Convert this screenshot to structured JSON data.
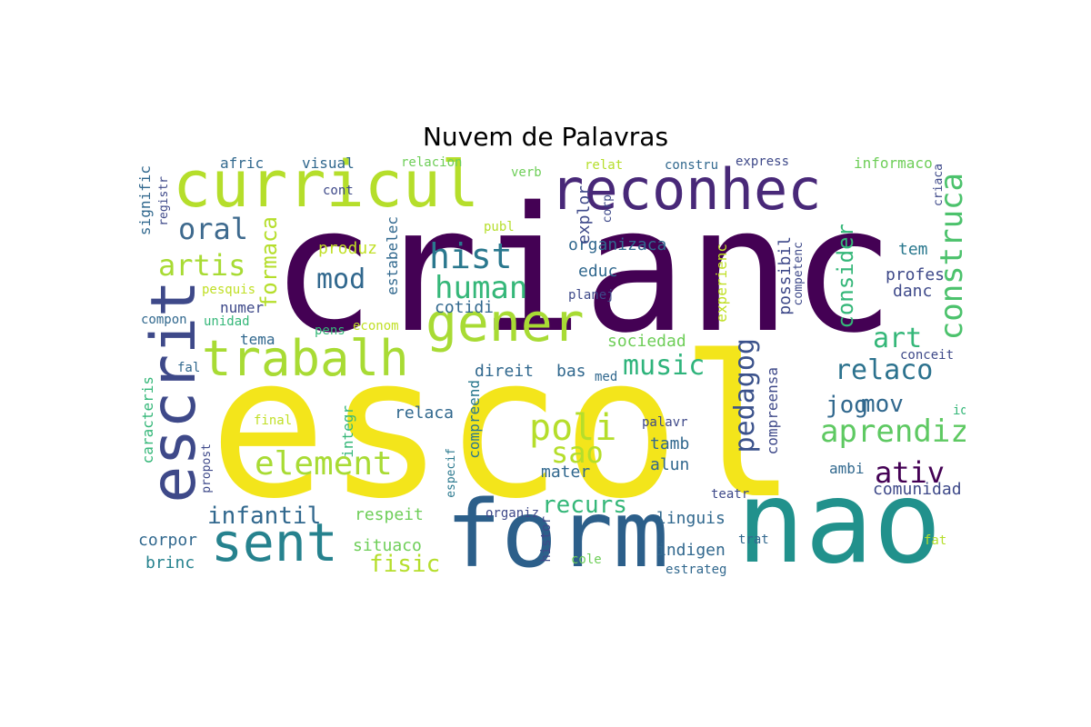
{
  "title": "Nuvem de Palavras",
  "colors": {
    "dark_purple": "#440154",
    "indigo": "#482878",
    "blue": "#3e4989",
    "steel_blue": "#31688e",
    "teal_blue": "#26828e",
    "teal": "#1f9e89",
    "green": "#35b779",
    "light_green": "#6ece58",
    "lime": "#b5de2b",
    "yellow": "#fde725"
  },
  "words": [
    {
      "text": "crianc",
      "color": "#440154"
    },
    {
      "text": "escol",
      "color": "#f3e51b"
    },
    {
      "text": "nao",
      "color": "#21918c"
    },
    {
      "text": "form",
      "color": "#2c5f8a"
    },
    {
      "text": "curricul",
      "color": "#b5de2b"
    },
    {
      "text": "reconhec",
      "color": "#482878"
    },
    {
      "text": "gener",
      "color": "#a8db34"
    },
    {
      "text": "trabalh",
      "color": "#a8db34"
    },
    {
      "text": "escrit",
      "color": "#3e4989"
    },
    {
      "text": "sent",
      "color": "#26828e"
    },
    {
      "text": "construca",
      "color": "#4cc26c"
    },
    {
      "text": "oral",
      "color": "#3e6a8e"
    },
    {
      "text": "artis",
      "color": "#a8db34"
    },
    {
      "text": "formaca",
      "color": "#b5de2b"
    },
    {
      "text": "hist",
      "color": "#2a788e"
    },
    {
      "text": "human",
      "color": "#35b779"
    },
    {
      "text": "mod",
      "color": "#31688e"
    },
    {
      "text": "produz",
      "color": "#c0df25"
    },
    {
      "text": "music",
      "color": "#2fb47c"
    },
    {
      "text": "element",
      "color": "#a8db34"
    },
    {
      "text": "infantil",
      "color": "#31688e"
    },
    {
      "text": "poli",
      "color": "#b5de2b"
    },
    {
      "text": "sao",
      "color": "#b5de2b"
    },
    {
      "text": "recurs",
      "color": "#35b779"
    },
    {
      "text": "fisic",
      "color": "#b5de2b"
    },
    {
      "text": "aprendiz",
      "color": "#5ec962"
    },
    {
      "text": "ativ",
      "color": "#440154"
    },
    {
      "text": "relaco",
      "color": "#2c728e"
    },
    {
      "text": "pedagog",
      "color": "#3b528b"
    },
    {
      "text": "jog",
      "color": "#31688e"
    },
    {
      "text": "mov",
      "color": "#31688e"
    },
    {
      "text": "art",
      "color": "#35b779"
    },
    {
      "text": "consider",
      "color": "#35b779"
    },
    {
      "text": "possibil",
      "color": "#3e4989"
    },
    {
      "text": "competenc",
      "color": "#3e4989"
    },
    {
      "text": "tem",
      "color": "#2a788e"
    },
    {
      "text": "profes",
      "color": "#3e4989"
    },
    {
      "text": "danc",
      "color": "#3e4989"
    },
    {
      "text": "conceit",
      "color": "#3e4989"
    },
    {
      "text": "organizaca",
      "color": "#31688e"
    },
    {
      "text": "educ",
      "color": "#31688e"
    },
    {
      "text": "planej",
      "color": "#3e4989"
    },
    {
      "text": "experienc",
      "color": "#c0df25"
    },
    {
      "text": "sociedad",
      "color": "#6ece58"
    },
    {
      "text": "direit",
      "color": "#31688e"
    },
    {
      "text": "bas",
      "color": "#31688e"
    },
    {
      "text": "med",
      "color": "#31688e"
    },
    {
      "text": "cotidi",
      "color": "#31688e"
    },
    {
      "text": "explor",
      "color": "#3e4989"
    },
    {
      "text": "corp",
      "color": "#3e4989"
    },
    {
      "text": "relaca",
      "color": "#31688e"
    },
    {
      "text": "compreend",
      "color": "#2a788e"
    },
    {
      "text": "integr",
      "color": "#35b779"
    },
    {
      "text": "especif",
      "color": "#2a788e"
    },
    {
      "text": "compreensa",
      "color": "#3e4989"
    },
    {
      "text": "tamb",
      "color": "#31688e"
    },
    {
      "text": "alun",
      "color": "#31688e"
    },
    {
      "text": "mater",
      "color": "#31688e"
    },
    {
      "text": "palavr",
      "color": "#3e4989"
    },
    {
      "text": "respeit",
      "color": "#6ece58"
    },
    {
      "text": "situaco",
      "color": "#6ece58"
    },
    {
      "text": "organiz",
      "color": "#3e4989"
    },
    {
      "text": "histor",
      "color": "#3e4989"
    },
    {
      "text": "cole",
      "color": "#6ece58"
    },
    {
      "text": "linguis",
      "color": "#31688e"
    },
    {
      "text": "indigen",
      "color": "#31688e"
    },
    {
      "text": "estrateg",
      "color": "#31688e"
    },
    {
      "text": "trat",
      "color": "#31688e"
    },
    {
      "text": "teatr",
      "color": "#3e4989"
    },
    {
      "text": "comunidad",
      "color": "#3e4989"
    },
    {
      "text": "ambi",
      "color": "#31688e"
    },
    {
      "text": "fat",
      "color": "#b5de2b"
    },
    {
      "text": "ide",
      "color": "#35b779"
    },
    {
      "text": "corpor",
      "color": "#31688e"
    },
    {
      "text": "brinc",
      "color": "#26828e"
    },
    {
      "text": "caracteris",
      "color": "#35b779"
    },
    {
      "text": "propost",
      "color": "#3e4989"
    },
    {
      "text": "final",
      "color": "#c0df25"
    },
    {
      "text": "fal",
      "color": "#31688e"
    },
    {
      "text": "tema",
      "color": "#31688e"
    },
    {
      "text": "numer",
      "color": "#3e4989"
    },
    {
      "text": "unidad",
      "color": "#35b779"
    },
    {
      "text": "compon",
      "color": "#31688e"
    },
    {
      "text": "pens",
      "color": "#35b779"
    },
    {
      "text": "econom",
      "color": "#c0df25"
    },
    {
      "text": "pesquis",
      "color": "#c0df25"
    },
    {
      "text": "estabelec",
      "color": "#31688e"
    },
    {
      "text": "signific",
      "color": "#31688e"
    },
    {
      "text": "registr",
      "color": "#3e4989"
    },
    {
      "text": "afric",
      "color": "#31688e"
    },
    {
      "text": "cont",
      "color": "#3e4989"
    },
    {
      "text": "visual",
      "color": "#31688e"
    },
    {
      "text": "relacion",
      "color": "#6ece58"
    },
    {
      "text": "publ",
      "color": "#b5de2b"
    },
    {
      "text": "verb",
      "color": "#6ece58"
    },
    {
      "text": "relat",
      "color": "#b5de2b"
    },
    {
      "text": "constru",
      "color": "#31688e"
    },
    {
      "text": "express",
      "color": "#3e4989"
    },
    {
      "text": "informaco",
      "color": "#6ece58"
    },
    {
      "text": "criaca",
      "color": "#3e4989"
    }
  ]
}
